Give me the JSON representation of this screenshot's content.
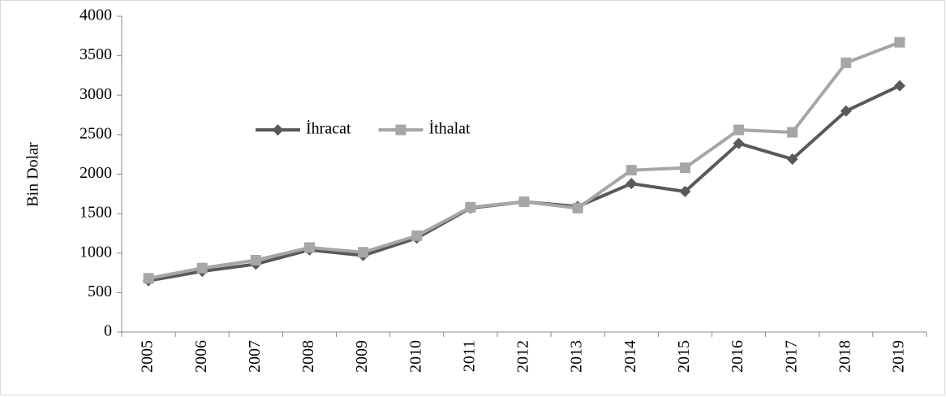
{
  "chart_data": {
    "type": "line",
    "y_label": "Bin Dolar",
    "categories": [
      "2005",
      "2006",
      "2007",
      "2008",
      "2009",
      "2010",
      "2011",
      "2012",
      "2013",
      "2014",
      "2015",
      "2016",
      "2017",
      "2018",
      "2019"
    ],
    "series": [
      {
        "name": "İhracat",
        "color": "#595959",
        "marker": "diamond",
        "values": [
          650,
          770,
          860,
          1040,
          970,
          1190,
          1570,
          1650,
          1590,
          1880,
          1780,
          2390,
          2190,
          2800,
          3120
        ]
      },
      {
        "name": "İthalat",
        "color": "#a6a6a6",
        "marker": "square",
        "values": [
          680,
          810,
          910,
          1070,
          1010,
          1220,
          1580,
          1650,
          1570,
          2050,
          2080,
          2560,
          2530,
          3410,
          3670
        ]
      }
    ],
    "ylim": [
      0,
      4000
    ],
    "yticks": [
      0,
      500,
      1000,
      1500,
      2000,
      2500,
      3000,
      3500,
      4000
    ],
    "grid": false,
    "legend": "center-left"
  }
}
